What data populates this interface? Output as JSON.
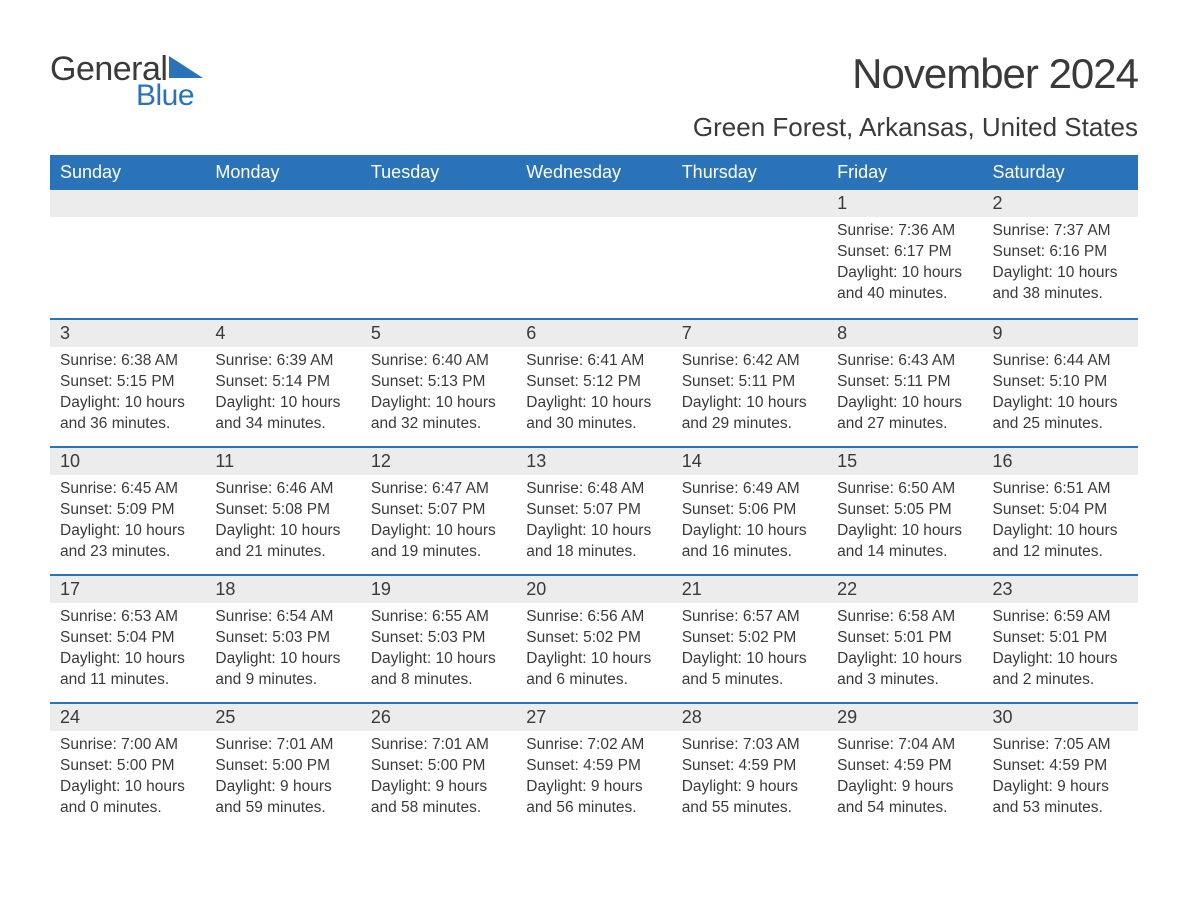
{
  "logo": {
    "general": "General",
    "blue": "Blue"
  },
  "title": "November 2024",
  "location": "Green Forest, Arkansas, United States",
  "colors": {
    "accent": "#2a73b8",
    "daynum_bg": "#ececec",
    "text": "#3a3a3a",
    "bg": "#ffffff"
  },
  "weekdays": [
    "Sunday",
    "Monday",
    "Tuesday",
    "Wednesday",
    "Thursday",
    "Friday",
    "Saturday"
  ],
  "weeks": [
    [
      null,
      null,
      null,
      null,
      null,
      {
        "n": "1",
        "sunrise": "Sunrise: 7:36 AM",
        "sunset": "Sunset: 6:17 PM",
        "daylight": "Daylight: 10 hours and 40 minutes."
      },
      {
        "n": "2",
        "sunrise": "Sunrise: 7:37 AM",
        "sunset": "Sunset: 6:16 PM",
        "daylight": "Daylight: 10 hours and 38 minutes."
      }
    ],
    [
      {
        "n": "3",
        "sunrise": "Sunrise: 6:38 AM",
        "sunset": "Sunset: 5:15 PM",
        "daylight": "Daylight: 10 hours and 36 minutes."
      },
      {
        "n": "4",
        "sunrise": "Sunrise: 6:39 AM",
        "sunset": "Sunset: 5:14 PM",
        "daylight": "Daylight: 10 hours and 34 minutes."
      },
      {
        "n": "5",
        "sunrise": "Sunrise: 6:40 AM",
        "sunset": "Sunset: 5:13 PM",
        "daylight": "Daylight: 10 hours and 32 minutes."
      },
      {
        "n": "6",
        "sunrise": "Sunrise: 6:41 AM",
        "sunset": "Sunset: 5:12 PM",
        "daylight": "Daylight: 10 hours and 30 minutes."
      },
      {
        "n": "7",
        "sunrise": "Sunrise: 6:42 AM",
        "sunset": "Sunset: 5:11 PM",
        "daylight": "Daylight: 10 hours and 29 minutes."
      },
      {
        "n": "8",
        "sunrise": "Sunrise: 6:43 AM",
        "sunset": "Sunset: 5:11 PM",
        "daylight": "Daylight: 10 hours and 27 minutes."
      },
      {
        "n": "9",
        "sunrise": "Sunrise: 6:44 AM",
        "sunset": "Sunset: 5:10 PM",
        "daylight": "Daylight: 10 hours and 25 minutes."
      }
    ],
    [
      {
        "n": "10",
        "sunrise": "Sunrise: 6:45 AM",
        "sunset": "Sunset: 5:09 PM",
        "daylight": "Daylight: 10 hours and 23 minutes."
      },
      {
        "n": "11",
        "sunrise": "Sunrise: 6:46 AM",
        "sunset": "Sunset: 5:08 PM",
        "daylight": "Daylight: 10 hours and 21 minutes."
      },
      {
        "n": "12",
        "sunrise": "Sunrise: 6:47 AM",
        "sunset": "Sunset: 5:07 PM",
        "daylight": "Daylight: 10 hours and 19 minutes."
      },
      {
        "n": "13",
        "sunrise": "Sunrise: 6:48 AM",
        "sunset": "Sunset: 5:07 PM",
        "daylight": "Daylight: 10 hours and 18 minutes."
      },
      {
        "n": "14",
        "sunrise": "Sunrise: 6:49 AM",
        "sunset": "Sunset: 5:06 PM",
        "daylight": "Daylight: 10 hours and 16 minutes."
      },
      {
        "n": "15",
        "sunrise": "Sunrise: 6:50 AM",
        "sunset": "Sunset: 5:05 PM",
        "daylight": "Daylight: 10 hours and 14 minutes."
      },
      {
        "n": "16",
        "sunrise": "Sunrise: 6:51 AM",
        "sunset": "Sunset: 5:04 PM",
        "daylight": "Daylight: 10 hours and 12 minutes."
      }
    ],
    [
      {
        "n": "17",
        "sunrise": "Sunrise: 6:53 AM",
        "sunset": "Sunset: 5:04 PM",
        "daylight": "Daylight: 10 hours and 11 minutes."
      },
      {
        "n": "18",
        "sunrise": "Sunrise: 6:54 AM",
        "sunset": "Sunset: 5:03 PM",
        "daylight": "Daylight: 10 hours and 9 minutes."
      },
      {
        "n": "19",
        "sunrise": "Sunrise: 6:55 AM",
        "sunset": "Sunset: 5:03 PM",
        "daylight": "Daylight: 10 hours and 8 minutes."
      },
      {
        "n": "20",
        "sunrise": "Sunrise: 6:56 AM",
        "sunset": "Sunset: 5:02 PM",
        "daylight": "Daylight: 10 hours and 6 minutes."
      },
      {
        "n": "21",
        "sunrise": "Sunrise: 6:57 AM",
        "sunset": "Sunset: 5:02 PM",
        "daylight": "Daylight: 10 hours and 5 minutes."
      },
      {
        "n": "22",
        "sunrise": "Sunrise: 6:58 AM",
        "sunset": "Sunset: 5:01 PM",
        "daylight": "Daylight: 10 hours and 3 minutes."
      },
      {
        "n": "23",
        "sunrise": "Sunrise: 6:59 AM",
        "sunset": "Sunset: 5:01 PM",
        "daylight": "Daylight: 10 hours and 2 minutes."
      }
    ],
    [
      {
        "n": "24",
        "sunrise": "Sunrise: 7:00 AM",
        "sunset": "Sunset: 5:00 PM",
        "daylight": "Daylight: 10 hours and 0 minutes."
      },
      {
        "n": "25",
        "sunrise": "Sunrise: 7:01 AM",
        "sunset": "Sunset: 5:00 PM",
        "daylight": "Daylight: 9 hours and 59 minutes."
      },
      {
        "n": "26",
        "sunrise": "Sunrise: 7:01 AM",
        "sunset": "Sunset: 5:00 PM",
        "daylight": "Daylight: 9 hours and 58 minutes."
      },
      {
        "n": "27",
        "sunrise": "Sunrise: 7:02 AM",
        "sunset": "Sunset: 4:59 PM",
        "daylight": "Daylight: 9 hours and 56 minutes."
      },
      {
        "n": "28",
        "sunrise": "Sunrise: 7:03 AM",
        "sunset": "Sunset: 4:59 PM",
        "daylight": "Daylight: 9 hours and 55 minutes."
      },
      {
        "n": "29",
        "sunrise": "Sunrise: 7:04 AM",
        "sunset": "Sunset: 4:59 PM",
        "daylight": "Daylight: 9 hours and 54 minutes."
      },
      {
        "n": "30",
        "sunrise": "Sunrise: 7:05 AM",
        "sunset": "Sunset: 4:59 PM",
        "daylight": "Daylight: 9 hours and 53 minutes."
      }
    ]
  ]
}
